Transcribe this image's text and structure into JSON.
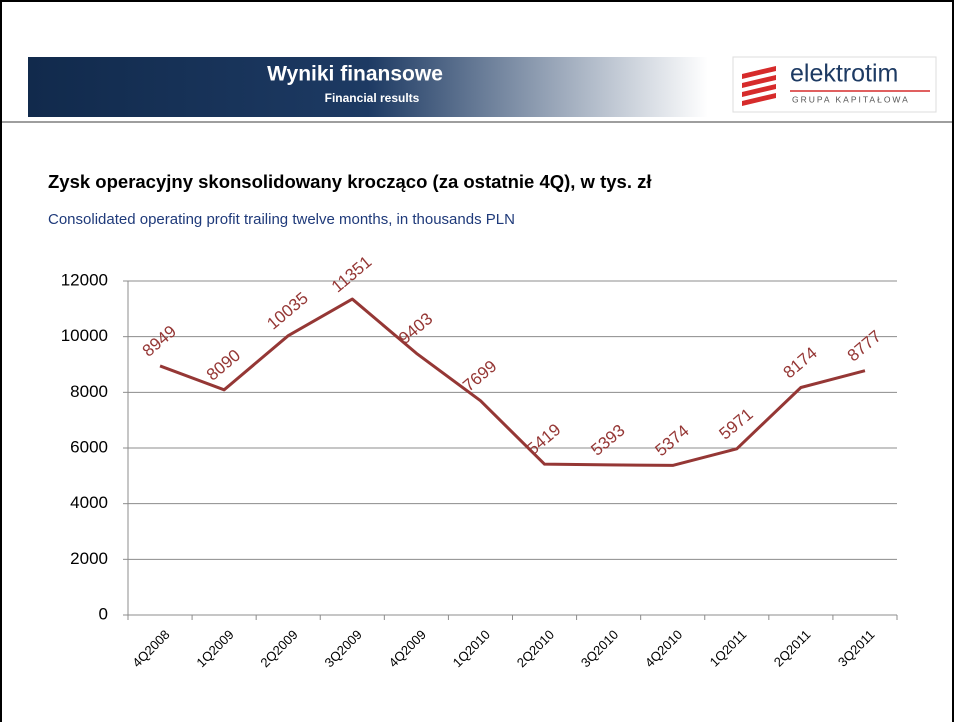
{
  "header": {
    "title": "Wyniki finansowe",
    "subtitle": "Financial results"
  },
  "logo": {
    "name": "elektrotim",
    "tagline": "GRUPA KAPITAŁOWA"
  },
  "chart_data": {
    "type": "line",
    "title": "Zysk operacyjny skonsolidowany krocząco (za ostatnie 4Q), w tys. zł",
    "subtitle": "Consolidated operating profit trailing twelve months, in thousands PLN",
    "categories": [
      "4Q2008",
      "1Q2009",
      "2Q2009",
      "3Q2009",
      "4Q2009",
      "1Q2010",
      "2Q2010",
      "3Q2010",
      "4Q2010",
      "1Q2011",
      "2Q2011",
      "3Q2011"
    ],
    "values": [
      8949,
      8090,
      10035,
      11351,
      9403,
      7699,
      5419,
      5393,
      5374,
      5971,
      8174,
      8777
    ],
    "color": "#953735",
    "ylim": [
      0,
      12000
    ],
    "yticks": [
      0,
      2000,
      4000,
      6000,
      8000,
      10000,
      12000
    ],
    "grid": true
  }
}
